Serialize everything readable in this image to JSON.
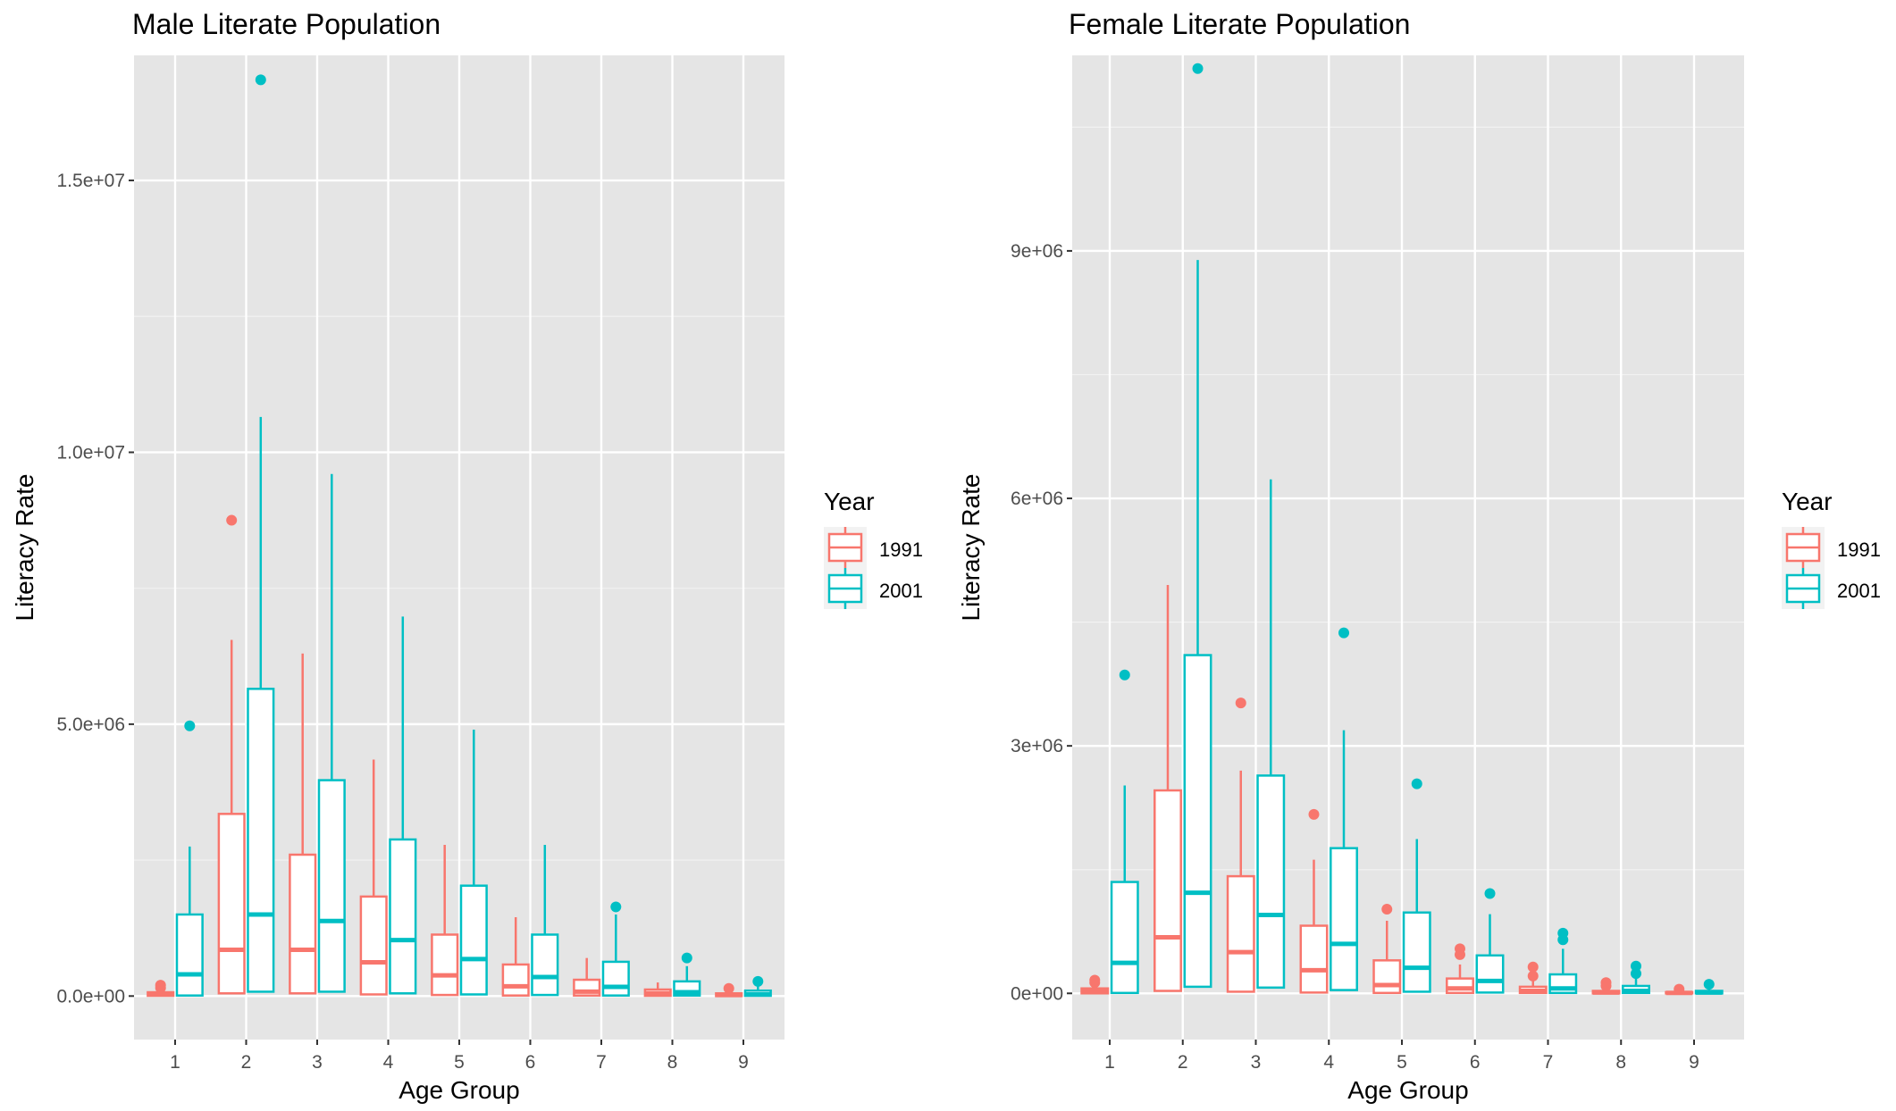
{
  "colors": {
    "panel_bg": "#E5E5E5",
    "grid_major": "#FFFFFF",
    "grid_minor": "#F2F2F2",
    "series_1991": "#F8766D",
    "series_2001": "#00BFC4",
    "text": "#000000",
    "tick_text": "#4D4D4D"
  },
  "chart_data": [
    {
      "type": "box",
      "title": "Male Literate Population",
      "xlabel": "Age Group",
      "ylabel": "Literacy Rate",
      "categories": [
        "1",
        "2",
        "3",
        "4",
        "5",
        "6",
        "7",
        "8",
        "9"
      ],
      "ylim": [
        -800000,
        17300000
      ],
      "yticks": [
        0,
        5000000,
        10000000,
        15000000
      ],
      "ytick_labels": [
        "0.0e+00",
        "5.0e+06",
        "1.0e+07",
        "1.5e+07"
      ],
      "grid": true,
      "legend": {
        "title": "Year",
        "position": "right"
      },
      "series": [
        {
          "name": "1991",
          "boxes": [
            {
              "min": 0,
              "q1": 5000,
              "median": 30000,
              "q3": 70000,
              "max": 100000,
              "outliers": [
                150000,
                200000
              ]
            },
            {
              "min": 50000,
              "q1": 50000,
              "median": 850000,
              "q3": 3350000,
              "max": 6550000,
              "outliers": [
                8750000
              ]
            },
            {
              "min": 50000,
              "q1": 50000,
              "median": 850000,
              "q3": 2600000,
              "max": 6300000,
              "outliers": []
            },
            {
              "min": 30000,
              "q1": 30000,
              "median": 620000,
              "q3": 1830000,
              "max": 4350000,
              "outliers": []
            },
            {
              "min": 20000,
              "q1": 20000,
              "median": 380000,
              "q3": 1130000,
              "max": 2780000,
              "outliers": []
            },
            {
              "min": 0,
              "q1": 10000,
              "median": 180000,
              "q3": 580000,
              "max": 1450000,
              "outliers": []
            },
            {
              "min": 0,
              "q1": 10000,
              "median": 80000,
              "q3": 300000,
              "max": 700000,
              "outliers": []
            },
            {
              "min": 0,
              "q1": 5000,
              "median": 50000,
              "q3": 120000,
              "max": 250000,
              "outliers": []
            },
            {
              "min": 0,
              "q1": 0,
              "median": 20000,
              "q3": 50000,
              "max": 100000,
              "outliers": [
                140000
              ]
            }
          ]
        },
        {
          "name": "2001",
          "boxes": [
            {
              "min": 10000,
              "q1": 10000,
              "median": 400000,
              "q3": 1500000,
              "max": 2750000,
              "outliers": [
                4970000
              ]
            },
            {
              "min": 80000,
              "q1": 80000,
              "median": 1500000,
              "q3": 5650000,
              "max": 10650000,
              "outliers": [
                16850000
              ]
            },
            {
              "min": 80000,
              "q1": 80000,
              "median": 1380000,
              "q3": 3970000,
              "max": 9600000,
              "outliers": []
            },
            {
              "min": 50000,
              "q1": 50000,
              "median": 1030000,
              "q3": 2880000,
              "max": 6980000,
              "outliers": []
            },
            {
              "min": 30000,
              "q1": 30000,
              "median": 680000,
              "q3": 2030000,
              "max": 4900000,
              "outliers": []
            },
            {
              "min": 20000,
              "q1": 20000,
              "median": 350000,
              "q3": 1130000,
              "max": 2780000,
              "outliers": []
            },
            {
              "min": 10000,
              "q1": 10000,
              "median": 170000,
              "q3": 630000,
              "max": 1500000,
              "outliers": [
                1640000
              ]
            },
            {
              "min": 0,
              "q1": 10000,
              "median": 70000,
              "q3": 270000,
              "max": 550000,
              "outliers": [
                700000
              ]
            },
            {
              "min": 0,
              "q1": 5000,
              "median": 30000,
              "q3": 100000,
              "max": 200000,
              "outliers": [
                270000
              ]
            }
          ]
        }
      ]
    },
    {
      "type": "box",
      "title": "Female Literate Population",
      "xlabel": "Age Group",
      "ylabel": "Literacy Rate",
      "categories": [
        "1",
        "2",
        "3",
        "4",
        "5",
        "6",
        "7",
        "8",
        "9"
      ],
      "ylim": [
        -560000,
        11370000
      ],
      "yticks": [
        0,
        3000000,
        6000000,
        9000000
      ],
      "ytick_labels": [
        "0e+00",
        "3e+06",
        "6e+06",
        "9e+06"
      ],
      "grid": true,
      "legend": {
        "title": "Year",
        "position": "right"
      },
      "series": [
        {
          "name": "1991",
          "boxes": [
            {
              "min": 0,
              "q1": 0,
              "median": 20000,
              "q3": 60000,
              "max": 100000,
              "outliers": [
                130000,
                160000
              ]
            },
            {
              "min": 30000,
              "q1": 30000,
              "median": 680000,
              "q3": 2460000,
              "max": 4950000,
              "outliers": []
            },
            {
              "min": 20000,
              "q1": 20000,
              "median": 500000,
              "q3": 1420000,
              "max": 2700000,
              "outliers": [
                3520000
              ]
            },
            {
              "min": 10000,
              "q1": 10000,
              "median": 280000,
              "q3": 820000,
              "max": 1620000,
              "outliers": [
                2170000
              ]
            },
            {
              "min": 5000,
              "q1": 5000,
              "median": 100000,
              "q3": 400000,
              "max": 880000,
              "outliers": [
                1020000
              ]
            },
            {
              "min": 0,
              "q1": 5000,
              "median": 60000,
              "q3": 180000,
              "max": 350000,
              "outliers": [
                470000,
                540000
              ]
            },
            {
              "min": 0,
              "q1": 5000,
              "median": 30000,
              "q3": 80000,
              "max": 160000,
              "outliers": [
                210000,
                320000
              ]
            },
            {
              "min": 0,
              "q1": 0,
              "median": 10000,
              "q3": 30000,
              "max": 60000,
              "outliers": [
                90000,
                130000
              ]
            },
            {
              "min": 0,
              "q1": 0,
              "median": 5000,
              "q3": 15000,
              "max": 30000,
              "outliers": [
                50000
              ]
            }
          ]
        },
        {
          "name": "2001",
          "boxes": [
            {
              "min": 5000,
              "q1": 5000,
              "median": 370000,
              "q3": 1350000,
              "max": 2520000,
              "outliers": [
                3860000
              ]
            },
            {
              "min": 80000,
              "q1": 80000,
              "median": 1220000,
              "q3": 4100000,
              "max": 8890000,
              "outliers": [
                11210000
              ]
            },
            {
              "min": 70000,
              "q1": 70000,
              "median": 950000,
              "q3": 2640000,
              "max": 6230000,
              "outliers": []
            },
            {
              "min": 40000,
              "q1": 40000,
              "median": 600000,
              "q3": 1760000,
              "max": 3190000,
              "outliers": [
                4370000
              ]
            },
            {
              "min": 20000,
              "q1": 20000,
              "median": 310000,
              "q3": 980000,
              "max": 1870000,
              "outliers": [
                2540000
              ]
            },
            {
              "min": 10000,
              "q1": 10000,
              "median": 150000,
              "q3": 460000,
              "max": 960000,
              "outliers": [
                1210000
              ]
            },
            {
              "min": 5000,
              "q1": 5000,
              "median": 60000,
              "q3": 230000,
              "max": 540000,
              "outliers": [
                650000,
                730000
              ]
            },
            {
              "min": 0,
              "q1": 5000,
              "median": 30000,
              "q3": 90000,
              "max": 180000,
              "outliers": [
                240000,
                330000
              ]
            },
            {
              "min": 0,
              "q1": 0,
              "median": 10000,
              "q3": 30000,
              "max": 60000,
              "outliers": [
                110000
              ]
            }
          ]
        }
      ]
    }
  ]
}
